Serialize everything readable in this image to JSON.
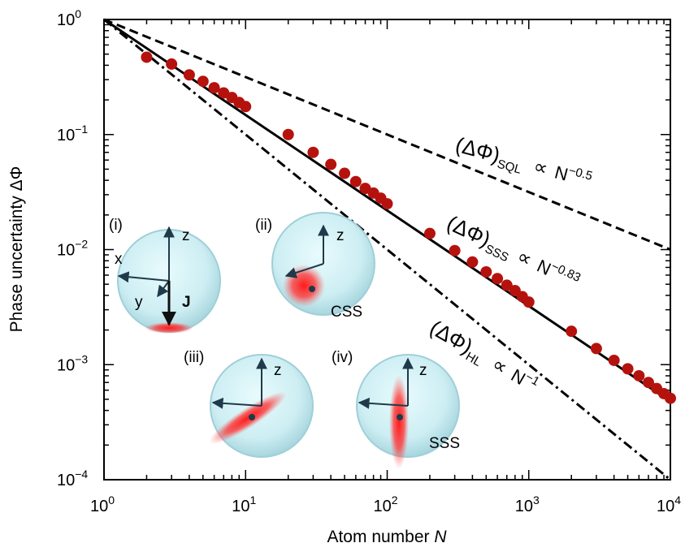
{
  "chart_data": {
    "type": "scatter",
    "title": "",
    "xlabel": {
      "text": "Atom number ",
      "var": "N"
    },
    "ylabel": "Phase uncertainty ΔΦ",
    "x_scale": "log",
    "y_scale": "log",
    "xlim": [
      1,
      10000
    ],
    "ylim": [
      0.0001,
      1
    ],
    "grid": false,
    "x_ticks": [
      {
        "value": 1,
        "base": "10",
        "exp": "0"
      },
      {
        "value": 10,
        "base": "10",
        "exp": "1"
      },
      {
        "value": 100,
        "base": "10",
        "exp": "2"
      },
      {
        "value": 1000,
        "base": "10",
        "exp": "3"
      },
      {
        "value": 10000,
        "base": "10",
        "exp": "4"
      }
    ],
    "y_ticks": [
      {
        "value": 1,
        "base": "10",
        "exp": "0"
      },
      {
        "value": 0.1,
        "base": "10",
        "exp": "−1"
      },
      {
        "value": 0.01,
        "base": "10",
        "exp": "−2"
      },
      {
        "value": 0.001,
        "base": "10",
        "exp": "−3"
      },
      {
        "value": 0.0001,
        "base": "10",
        "exp": "−4"
      }
    ],
    "series": [
      {
        "kind": "points",
        "color": "#b5120e",
        "x": [
          2,
          3,
          4,
          5,
          6,
          7,
          8,
          9,
          10,
          20,
          30,
          40,
          50,
          60,
          70,
          80,
          90,
          100,
          200,
          300,
          400,
          500,
          600,
          700,
          800,
          900,
          1000,
          2000,
          3000,
          4000,
          5000,
          6000,
          7000,
          8000,
          9000,
          10000
        ],
        "y": [
          0.47,
          0.41,
          0.33,
          0.29,
          0.255,
          0.23,
          0.21,
          0.19,
          0.175,
          0.1,
          0.07,
          0.055,
          0.046,
          0.039,
          0.034,
          0.031,
          0.028,
          0.025,
          0.0138,
          0.0098,
          0.0078,
          0.0064,
          0.0056,
          0.0049,
          0.0044,
          0.0039,
          0.0035,
          0.00195,
          0.00138,
          0.00109,
          0.00092,
          0.0008,
          0.0007,
          0.00062,
          0.00056,
          0.00051
        ]
      },
      {
        "kind": "line",
        "style": "dashed",
        "exponent": -0.5,
        "prefactor": 1
      },
      {
        "kind": "line",
        "style": "solid",
        "exponent": -0.83,
        "prefactor": 1
      },
      {
        "kind": "line",
        "style": "dashdot",
        "exponent": -1,
        "prefactor": 1
      }
    ],
    "annotations": [
      {
        "lhs": "(ΔΦ)",
        "sub": "SQL",
        "prop": "∝",
        "rhs": "N",
        "exp": "−0.5"
      },
      {
        "lhs": "(ΔΦ)",
        "sub": "SSS",
        "prop": "∝",
        "rhs": "N",
        "exp": "−0.83"
      },
      {
        "lhs": "(ΔΦ)",
        "sub": "HL",
        "prop": "∝",
        "rhs": "N",
        "exp": "−1"
      }
    ]
  },
  "insets": [
    {
      "label": "(i)",
      "axes": [
        "z",
        "x",
        "y"
      ],
      "vector": "J",
      "state": ""
    },
    {
      "label": "(ii)",
      "axes": [
        "z"
      ],
      "state": "CSS"
    },
    {
      "label": "(iii)",
      "axes": [
        "z"
      ],
      "state": ""
    },
    {
      "label": "(iv)",
      "axes": [
        "z"
      ],
      "state": "SSS"
    }
  ],
  "colors": {
    "points": "#b5120e",
    "sphere": "#cfeef3",
    "sphere_edge": "#97c5cf",
    "spot": "#ff1a1a",
    "axes": "#1f3a4a"
  }
}
